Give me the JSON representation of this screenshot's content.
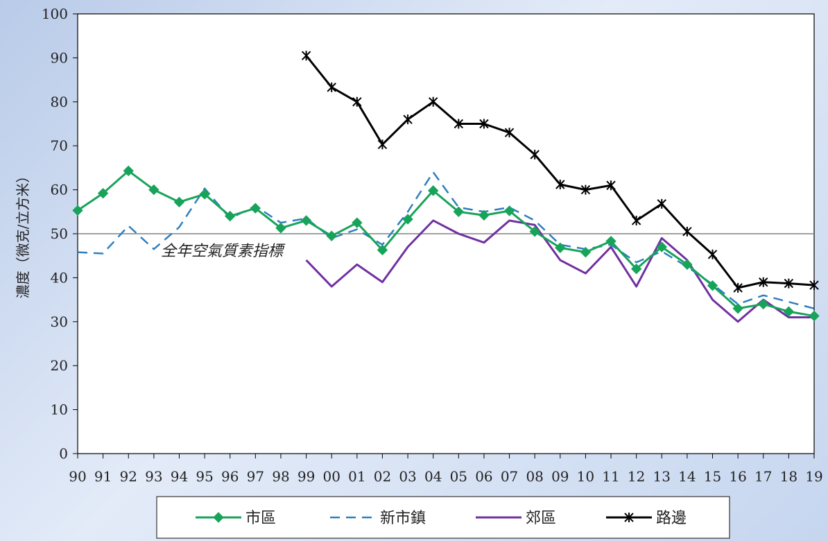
{
  "chart_data": {
    "type": "line",
    "title": "",
    "xlabel": "",
    "ylabel": "濃度（微克/立方米）",
    "ylim": [
      0,
      100
    ],
    "yticks": [
      0,
      10,
      20,
      30,
      40,
      50,
      60,
      70,
      80,
      90,
      100
    ],
    "categories": [
      "90",
      "91",
      "92",
      "93",
      "94",
      "95",
      "96",
      "97",
      "98",
      "99",
      "00",
      "01",
      "02",
      "03",
      "04",
      "05",
      "06",
      "07",
      "08",
      "09",
      "10",
      "11",
      "12",
      "13",
      "14",
      "15",
      "16",
      "17",
      "18",
      "19"
    ],
    "reference_line": {
      "value": 50,
      "label": "全年空氣質素指標",
      "color": "#808080"
    },
    "legend_position": "bottom",
    "grid": false,
    "series": [
      {
        "name": "市區",
        "color": "#18a35a",
        "style": "solid",
        "marker": "diamond",
        "values": [
          55.3,
          59.2,
          64.3,
          60.0,
          57.2,
          59.0,
          54.0,
          55.8,
          51.3,
          53.0,
          49.5,
          52.5,
          46.3,
          53.3,
          59.8,
          55.0,
          54.2,
          55.2,
          50.5,
          46.8,
          45.8,
          48.3,
          42.0,
          47.0,
          43.0,
          38.2,
          33.0,
          34.0,
          32.3,
          31.3
        ]
      },
      {
        "name": "新市鎮",
        "color": "#2e7fbf",
        "style": "dashed",
        "marker": "none",
        "values": [
          45.8,
          45.5,
          51.8,
          46.5,
          51.5,
          60.3,
          53.5,
          56.3,
          52.5,
          53.5,
          49.0,
          51.0,
          47.5,
          55.0,
          64.0,
          56.0,
          55.0,
          56.0,
          53.0,
          47.5,
          46.5,
          47.5,
          43.5,
          46.0,
          42.5,
          38.5,
          34.0,
          36.0,
          34.5,
          33.0
        ]
      },
      {
        "name": "郊區",
        "color": "#7030a0",
        "style": "solid",
        "marker": "none",
        "values": [
          null,
          null,
          null,
          null,
          null,
          null,
          null,
          null,
          null,
          44.0,
          38.0,
          43.0,
          39.0,
          47.0,
          53.0,
          50.0,
          48.0,
          53.0,
          52.0,
          44.0,
          41.0,
          47.0,
          38.0,
          49.0,
          44.0,
          35.0,
          30.0,
          35.0,
          31.0,
          31.0
        ]
      },
      {
        "name": "路邊",
        "color": "#000000",
        "style": "solid",
        "marker": "asterisk",
        "values": [
          null,
          null,
          null,
          null,
          null,
          null,
          null,
          null,
          null,
          90.5,
          83.3,
          80.0,
          70.3,
          76.0,
          80.0,
          75.0,
          75.0,
          73.0,
          68.0,
          61.2,
          60.0,
          61.0,
          53.0,
          56.8,
          50.5,
          45.3,
          37.7,
          39.0,
          38.7,
          38.3
        ]
      }
    ]
  }
}
